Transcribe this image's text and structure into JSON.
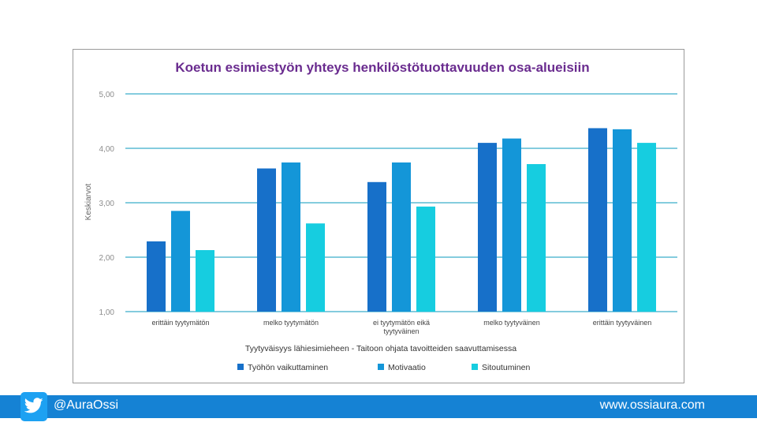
{
  "chart_data": {
    "type": "bar",
    "title": "Koetun esimiestyön yhteys henkilöstötuottavuuden osa-alueisiin",
    "xlabel": "Tyytyväisyys lähiesimieheen - Taitoon ohjata tavoitteiden saavuttamisessa",
    "ylabel": "Keskiarvot",
    "ylim": [
      1,
      5
    ],
    "yticks": [
      "1,00",
      "2,00",
      "3,00",
      "4,00",
      "5,00"
    ],
    "grid": true,
    "legend_position": "bottom",
    "categories": [
      [
        "erittäin tyytymätön"
      ],
      [
        "melko tyytymätön"
      ],
      [
        "ei tyytymätön eikä",
        "tyytyväinen"
      ],
      [
        "melko tyytyväinen"
      ],
      [
        "erittäin tyytyväinen"
      ]
    ],
    "series": [
      {
        "name": "Työhön vaikuttaminen",
        "color": "#1770c9",
        "values": [
          2.29,
          3.63,
          3.38,
          4.1,
          4.37
        ]
      },
      {
        "name": "Motivaatio",
        "color": "#1496d8",
        "values": [
          2.85,
          3.74,
          3.74,
          4.18,
          4.35
        ]
      },
      {
        "name": "Sitoutuminen",
        "color": "#16cde0",
        "values": [
          2.13,
          2.62,
          2.93,
          3.71,
          4.1
        ]
      }
    ]
  },
  "footer": {
    "twitter_handle": "@AuraOssi",
    "website": "www.ossiaura.com"
  }
}
